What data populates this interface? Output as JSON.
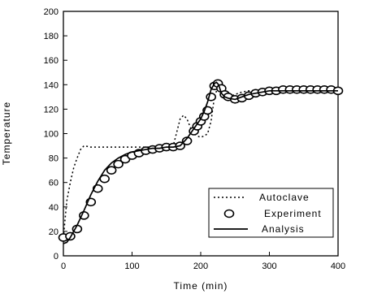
{
  "chart_data": {
    "type": "line",
    "title": "",
    "xlabel": "Time (min)",
    "ylabel": "Temperature",
    "xlim": [
      0,
      400
    ],
    "ylim": [
      0,
      200
    ],
    "x_ticks": [
      0,
      100,
      200,
      300,
      400
    ],
    "y_ticks": [
      0,
      20,
      40,
      60,
      80,
      100,
      120,
      140,
      160,
      180,
      200
    ],
    "x_tick_labels": [
      "0",
      "100",
      "200",
      "300",
      "400"
    ],
    "y_tick_labels": [
      "0",
      "20",
      "40",
      "60",
      "80",
      "100",
      "120",
      "140",
      "160",
      "180",
      "200"
    ],
    "grid": false,
    "legend_position": "bottom-right",
    "series": [
      {
        "name": "Autoclave",
        "style": "dotted",
        "x": [
          0,
          5,
          10,
          15,
          20,
          25,
          30,
          40,
          60,
          90,
          120,
          150,
          160,
          170,
          175,
          180,
          185,
          190,
          195,
          200,
          205,
          210,
          215,
          220,
          225,
          230,
          240,
          250,
          260,
          270,
          290,
          320,
          360,
          400
        ],
        "y": [
          15,
          45,
          60,
          72,
          80,
          87,
          90,
          89,
          89,
          89,
          89,
          89,
          90,
          112,
          115,
          112,
          105,
          100,
          98,
          97,
          98,
          100,
          110,
          130,
          138,
          135,
          130,
          132,
          134,
          135,
          136,
          136,
          136,
          136
        ]
      },
      {
        "name": "Experiment",
        "style": "markers",
        "x": [
          0,
          10,
          20,
          30,
          40,
          50,
          60,
          70,
          80,
          90,
          100,
          110,
          120,
          130,
          140,
          150,
          160,
          170,
          180,
          190,
          195,
          200,
          205,
          210,
          215,
          220,
          225,
          230,
          235,
          240,
          250,
          260,
          270,
          280,
          290,
          300,
          310,
          320,
          330,
          340,
          350,
          360,
          370,
          380,
          390,
          400
        ],
        "y": [
          15,
          16,
          22,
          33,
          44,
          55,
          63,
          70,
          75,
          79,
          82,
          84,
          86,
          87,
          88,
          89,
          89,
          90,
          94,
          102,
          106,
          110,
          114,
          119,
          130,
          139,
          141,
          137,
          132,
          130,
          128,
          129,
          131,
          133,
          134,
          135,
          135,
          136,
          136,
          136,
          136,
          136,
          136,
          136,
          136,
          135
        ]
      },
      {
        "name": "Analysis",
        "style": "solid",
        "x": [
          0,
          5,
          10,
          20,
          30,
          40,
          50,
          60,
          70,
          80,
          90,
          100,
          110,
          120,
          130,
          140,
          150,
          160,
          170,
          180,
          190,
          200,
          205,
          210,
          215,
          220,
          223,
          226,
          230,
          235,
          240,
          250,
          260,
          270,
          280,
          290,
          300,
          320,
          340,
          360,
          380,
          400
        ],
        "y": [
          10,
          11,
          15,
          25,
          37,
          50,
          61,
          70,
          76,
          80,
          83,
          85,
          86,
          87,
          88,
          88,
          89,
          89,
          90,
          96,
          104,
          112,
          118,
          126,
          136,
          141,
          142,
          140,
          133,
          130,
          129,
          128,
          130,
          132,
          133,
          134,
          135,
          135,
          135,
          135,
          135,
          135
        ]
      }
    ]
  }
}
